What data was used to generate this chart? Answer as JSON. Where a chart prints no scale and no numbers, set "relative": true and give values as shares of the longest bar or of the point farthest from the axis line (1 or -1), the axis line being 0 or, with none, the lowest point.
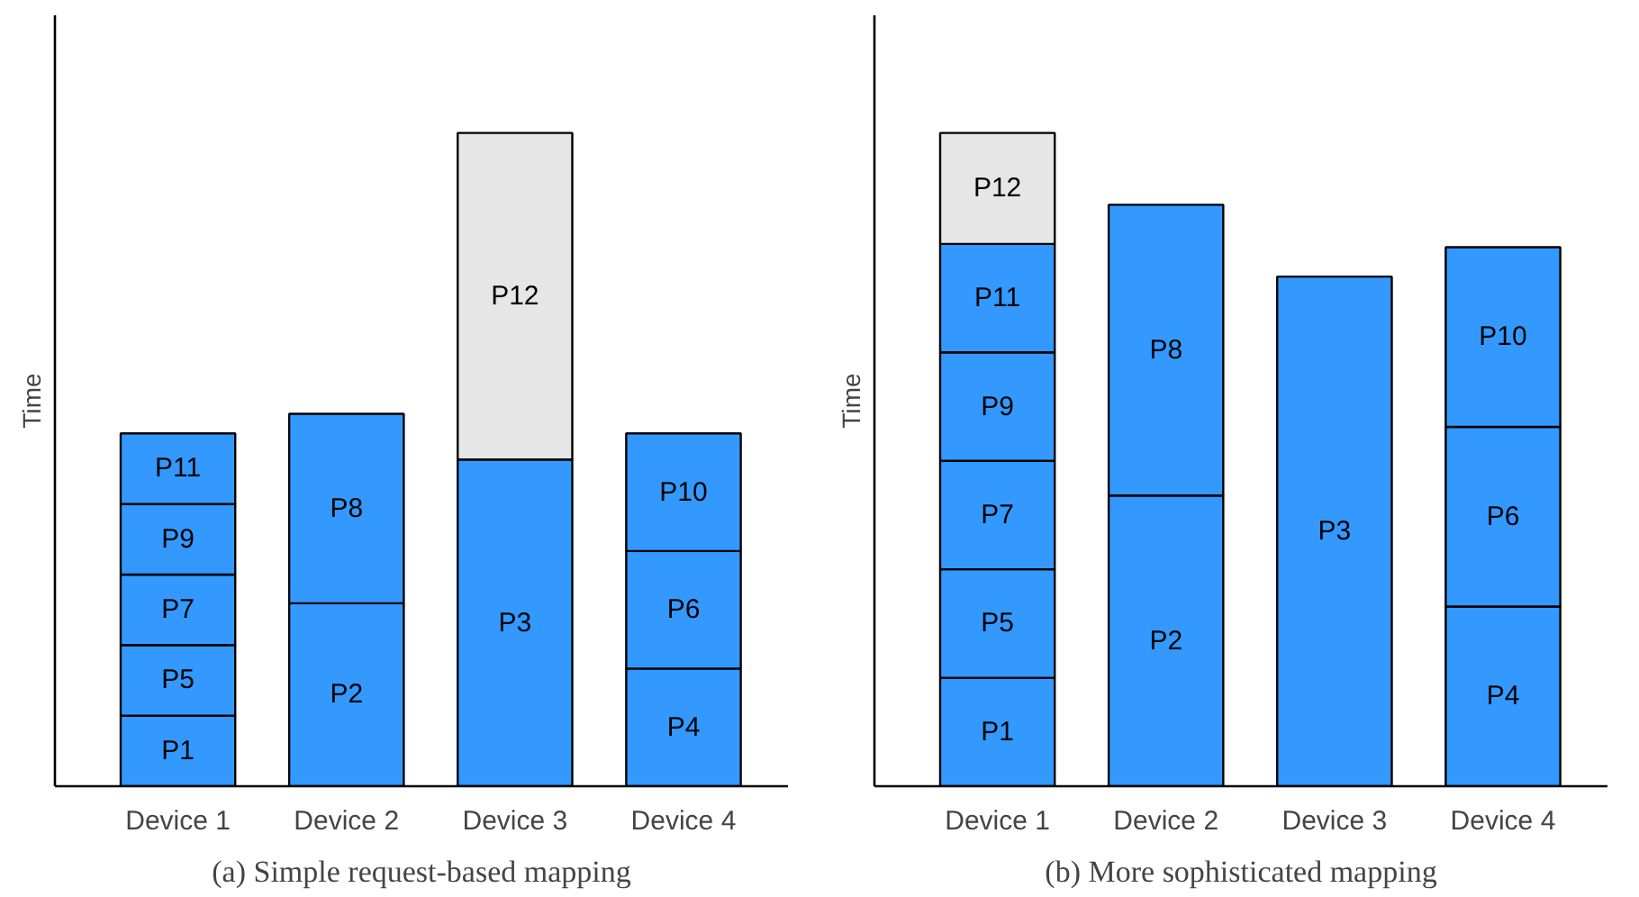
{
  "chart_data": [
    {
      "type": "bar",
      "title": "(a) Simple request-based mapping",
      "ylabel": "Time",
      "categories": [
        "Device 1",
        "Device 2",
        "Device 3",
        "Device 4"
      ],
      "stacked": true,
      "relative": true,
      "grid": false,
      "series": [
        {
          "values": [
            0.108,
            0.28,
            0.5,
            0.18
          ],
          "colors": [
            "#3399ff",
            "#3399ff",
            "#3399ff",
            "#3399ff"
          ]
        },
        {
          "values": [
            0.108,
            0.29,
            0.5,
            0.18
          ],
          "colors": [
            "#3399ff",
            "#3399ff",
            "#e6e6e6",
            "#3399ff"
          ]
        },
        {
          "values": [
            0.108,
            null,
            null,
            0.18
          ],
          "colors": [
            "#3399ff",
            null,
            null,
            "#3399ff"
          ]
        },
        {
          "values": [
            0.108,
            null,
            null,
            null
          ],
          "colors": [
            "#3399ff",
            null,
            null,
            null
          ]
        },
        {
          "values": [
            0.108,
            null,
            null,
            null
          ],
          "colors": [
            "#3399ff",
            null,
            null,
            null
          ]
        }
      ],
      "annotations": [
        "P1",
        "P2",
        "P3",
        "P4",
        "P5",
        "P8",
        "P12",
        "P6",
        "P7",
        "P10",
        "P9",
        "P11"
      ]
    },
    {
      "type": "bar",
      "title": "(b) More sophisticated mapping",
      "ylabel": "Time",
      "categories": [
        "Device 1",
        "Device 2",
        "Device 3",
        "Device 4"
      ],
      "stacked": true,
      "relative": true,
      "grid": false,
      "series": [
        {
          "values": [
            0.166,
            0.445,
            0.78,
            0.275
          ],
          "colors": [
            "#3399ff",
            "#3399ff",
            "#3399ff",
            "#3399ff"
          ]
        },
        {
          "values": [
            0.166,
            0.445,
            null,
            0.275
          ],
          "colors": [
            "#3399ff",
            "#3399ff",
            null,
            "#3399ff"
          ]
        },
        {
          "values": [
            0.166,
            null,
            null,
            0.275
          ],
          "colors": [
            "#3399ff",
            null,
            null,
            "#3399ff"
          ]
        },
        {
          "values": [
            0.166,
            null,
            null,
            null
          ],
          "colors": [
            "#3399ff",
            null,
            null,
            null
          ]
        },
        {
          "values": [
            0.166,
            null,
            null,
            null
          ],
          "colors": [
            "#3399ff",
            null,
            null,
            null
          ]
        },
        {
          "values": [
            0.17,
            null,
            null,
            null
          ],
          "colors": [
            "#e6e6e6",
            null,
            null,
            null
          ]
        }
      ],
      "annotations": [
        "P1",
        "P2",
        "P3",
        "P4",
        "P5",
        "P8",
        "P6",
        "P7",
        "P10",
        "P9",
        "P11",
        "P12"
      ]
    }
  ]
}
